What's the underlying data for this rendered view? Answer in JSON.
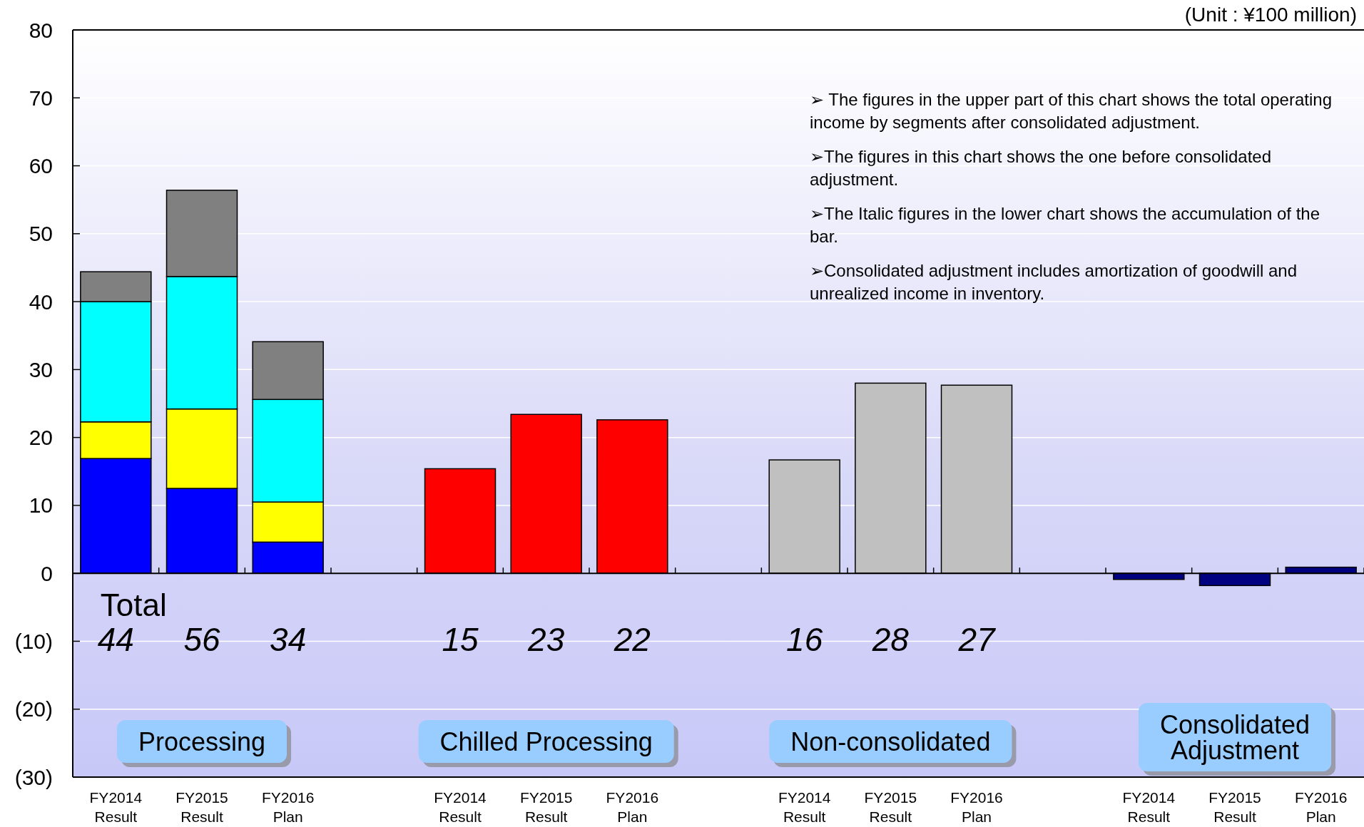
{
  "chart_data": {
    "type": "bar",
    "stacked": true,
    "categories": [
      "FY2014 Result",
      "FY2015 Result",
      "FY2016 Plan",
      null,
      "FY2014 Result",
      "FY2015 Result",
      "FY2016 Plan",
      null,
      "FY2014 Result",
      "FY2015 Result",
      "FY2016 Plan",
      null,
      "FY2014 Result",
      "FY2015 Result",
      "FY2016 Plan"
    ],
    "series": [
      {
        "color": "#0000ff",
        "values": [
          16.9,
          12.5,
          4.6,
          null,
          null,
          null,
          null,
          null,
          null,
          null,
          null,
          null,
          null,
          null,
          null
        ]
      },
      {
        "color": "#ffff00",
        "values": [
          5.4,
          11.7,
          5.9,
          null,
          null,
          null,
          null,
          null,
          null,
          null,
          null,
          null,
          null,
          null,
          null
        ]
      },
      {
        "color": "#00ffff",
        "values": [
          17.7,
          19.5,
          15.1,
          null,
          null,
          null,
          null,
          null,
          null,
          null,
          null,
          null,
          null,
          null,
          null
        ]
      },
      {
        "color": "#808080",
        "values": [
          4.4,
          12.7,
          8.5,
          null,
          null,
          null,
          null,
          null,
          null,
          null,
          null,
          null,
          null,
          null,
          null
        ]
      },
      {
        "color": "#ff0000",
        "values": [
          null,
          null,
          null,
          null,
          15.4,
          23.4,
          22.6,
          null,
          null,
          null,
          null,
          null,
          null,
          null,
          null
        ]
      },
      {
        "color": "#c0c0c0",
        "values": [
          null,
          null,
          null,
          null,
          null,
          null,
          null,
          null,
          16.7,
          28.0,
          27.7,
          null,
          null,
          null,
          null
        ]
      },
      {
        "color": "#000080",
        "values": [
          null,
          null,
          null,
          null,
          null,
          null,
          null,
          null,
          null,
          null,
          null,
          null,
          -0.9,
          -1.8,
          0.9
        ]
      }
    ],
    "totals": [
      "44",
      "56",
      "34",
      null,
      "15",
      "23",
      "22",
      null,
      "16",
      "28",
      "27",
      null,
      null,
      null,
      null
    ],
    "ylim": [
      -30,
      80
    ],
    "yticks": [
      {
        "value": -30,
        "label": "(30)"
      },
      {
        "value": -20,
        "label": "(20)"
      },
      {
        "value": -10,
        "label": "(10)"
      },
      0,
      10,
      20,
      30,
      40,
      50,
      60,
      70,
      80
    ],
    "grid": "y",
    "annotations": [
      "(Unit : ¥100 million)",
      "➢ The figures in the upper part of this chart shows the total operating income by segments after consolidated adjustment.",
      "➢The figures in this chart shows the one before consolidated adjustment.",
      "➢The Italic figures in the lower chart shows the accumulation of the bar.",
      "➢Consolidated adjustment includes amortization of goodwill and unrealized income in inventory.",
      "Total",
      "Processing",
      "Chilled Processing",
      "Non-consolidated",
      "Consolidated Adjustment"
    ]
  }
}
